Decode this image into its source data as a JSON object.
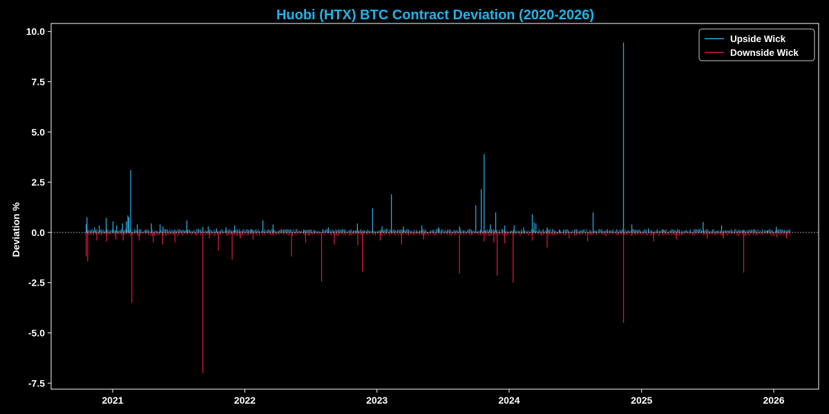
{
  "chart_data": {
    "type": "bar",
    "title": "Huobi (HTX) BTC Contract Deviation (2020-2026)",
    "xlabel": "",
    "ylabel": "Deviation %",
    "x_domain": [
      "2020-07-15",
      "2026-05-05"
    ],
    "ylim": [
      -7.8,
      10.4
    ],
    "x_ticks": [
      {
        "label": "2021",
        "date": "2021-01-01"
      },
      {
        "label": "2022",
        "date": "2022-01-01"
      },
      {
        "label": "2023",
        "date": "2023-01-01"
      },
      {
        "label": "2024",
        "date": "2024-01-01"
      },
      {
        "label": "2025",
        "date": "2025-01-01"
      },
      {
        "label": "2026",
        "date": "2026-01-01"
      }
    ],
    "y_ticks": [
      {
        "label": "10.0",
        "value": 10
      },
      {
        "label": "7.5",
        "value": 7.5
      },
      {
        "label": "5.0",
        "value": 5
      },
      {
        "label": "2.5",
        "value": 2.5
      },
      {
        "label": "0.0",
        "value": 0
      },
      {
        "label": "-2.5",
        "value": -2.5
      },
      {
        "label": "-5.0",
        "value": -5
      },
      {
        "label": "-7.5",
        "value": -7.5
      }
    ],
    "zero_line": true,
    "grid": false,
    "legend_position": "top-right",
    "series": [
      {
        "name": "Upside Wick",
        "color": "#29abe2",
        "points": [
          [
            "2020-10-20",
            0.42
          ],
          [
            "2020-10-22",
            0.75
          ],
          [
            "2020-11-12",
            0.25
          ],
          [
            "2020-11-25",
            0.35
          ],
          [
            "2020-12-14",
            0.72
          ],
          [
            "2021-01-02",
            0.55
          ],
          [
            "2021-01-12",
            0.35
          ],
          [
            "2021-01-28",
            0.45
          ],
          [
            "2021-02-08",
            0.55
          ],
          [
            "2021-02-12",
            0.85
          ],
          [
            "2021-02-15",
            0.75
          ],
          [
            "2021-02-20",
            3.1
          ],
          [
            "2021-03-10",
            0.4
          ],
          [
            "2021-04-18",
            0.45
          ],
          [
            "2021-05-12",
            0.4
          ],
          [
            "2021-05-20",
            0.3
          ],
          [
            "2021-07-25",
            0.6
          ],
          [
            "2021-09-07",
            0.28
          ],
          [
            "2021-09-22",
            0.3
          ],
          [
            "2021-10-15",
            0.2
          ],
          [
            "2021-11-10",
            0.25
          ],
          [
            "2021-12-04",
            0.35
          ],
          [
            "2022-01-20",
            0.15
          ],
          [
            "2022-02-20",
            0.6
          ],
          [
            "2022-03-20",
            0.4
          ],
          [
            "2022-06-13",
            0.15
          ],
          [
            "2022-08-20",
            0.25
          ],
          [
            "2022-11-08",
            0.45
          ],
          [
            "2022-12-20",
            1.2
          ],
          [
            "2023-01-15",
            0.3
          ],
          [
            "2023-02-10",
            1.9
          ],
          [
            "2023-03-15",
            0.3
          ],
          [
            "2023-05-05",
            0.35
          ],
          [
            "2023-06-20",
            0.25
          ],
          [
            "2023-08-17",
            0.3
          ],
          [
            "2023-10-01",
            1.35
          ],
          [
            "2023-10-16",
            2.15
          ],
          [
            "2023-10-24",
            3.9
          ],
          [
            "2023-11-10",
            0.4
          ],
          [
            "2023-11-25",
            1.0
          ],
          [
            "2023-12-20",
            0.35
          ],
          [
            "2024-01-15",
            0.35
          ],
          [
            "2024-02-10",
            0.25
          ],
          [
            "2024-03-05",
            0.9
          ],
          [
            "2024-03-10",
            0.5
          ],
          [
            "2024-03-15",
            0.45
          ],
          [
            "2024-04-15",
            0.25
          ],
          [
            "2024-05-20",
            0.15
          ],
          [
            "2024-08-20",
            1.0
          ],
          [
            "2024-11-12",
            9.45
          ],
          [
            "2024-12-05",
            0.4
          ],
          [
            "2025-01-20",
            0.2
          ],
          [
            "2025-03-01",
            0.15
          ],
          [
            "2025-06-20",
            0.52
          ],
          [
            "2025-08-10",
            0.35
          ],
          [
            "2025-10-10",
            0.12
          ],
          [
            "2025-12-15",
            0.1
          ],
          [
            "2026-01-08",
            0.28
          ]
        ]
      },
      {
        "name": "Downside Wick",
        "color": "#d7193d",
        "points": [
          [
            "2020-10-20",
            -1.2
          ],
          [
            "2020-10-24",
            -1.45
          ],
          [
            "2020-11-18",
            -0.4
          ],
          [
            "2020-12-15",
            -0.45
          ],
          [
            "2021-01-10",
            -0.35
          ],
          [
            "2021-01-30",
            -0.4
          ],
          [
            "2021-02-23",
            -3.5
          ],
          [
            "2021-03-15",
            -0.4
          ],
          [
            "2021-04-23",
            -0.5
          ],
          [
            "2021-05-19",
            -0.6
          ],
          [
            "2021-06-22",
            -0.5
          ],
          [
            "2021-09-07",
            -7.0
          ],
          [
            "2021-09-25",
            -0.3
          ],
          [
            "2021-10-20",
            -0.9
          ],
          [
            "2021-11-27",
            -1.35
          ],
          [
            "2021-12-20",
            -0.3
          ],
          [
            "2022-01-24",
            -0.35
          ],
          [
            "2022-05-10",
            -1.2
          ],
          [
            "2022-06-18",
            -0.5
          ],
          [
            "2022-08-01",
            -2.45
          ],
          [
            "2022-09-05",
            -0.6
          ],
          [
            "2022-11-09",
            -0.65
          ],
          [
            "2022-11-22",
            -1.95
          ],
          [
            "2023-01-10",
            -0.4
          ],
          [
            "2023-03-10",
            -0.6
          ],
          [
            "2023-05-10",
            -0.35
          ],
          [
            "2023-08-17",
            -2.05
          ],
          [
            "2023-10-24",
            -0.45
          ],
          [
            "2023-11-20",
            -0.5
          ],
          [
            "2023-11-29",
            -2.15
          ],
          [
            "2023-12-20",
            -0.55
          ],
          [
            "2024-01-12",
            -2.5
          ],
          [
            "2024-03-05",
            -0.4
          ],
          [
            "2024-04-15",
            -0.75
          ],
          [
            "2024-06-15",
            -0.3
          ],
          [
            "2024-08-05",
            -0.45
          ],
          [
            "2024-11-12",
            -4.5
          ],
          [
            "2025-02-03",
            -0.45
          ],
          [
            "2025-04-07",
            -0.35
          ],
          [
            "2025-07-01",
            -0.3
          ],
          [
            "2025-08-15",
            -0.3
          ],
          [
            "2025-10-10",
            -2.0
          ],
          [
            "2026-01-10",
            -0.25
          ],
          [
            "2026-02-05",
            -0.3
          ]
        ]
      }
    ]
  }
}
